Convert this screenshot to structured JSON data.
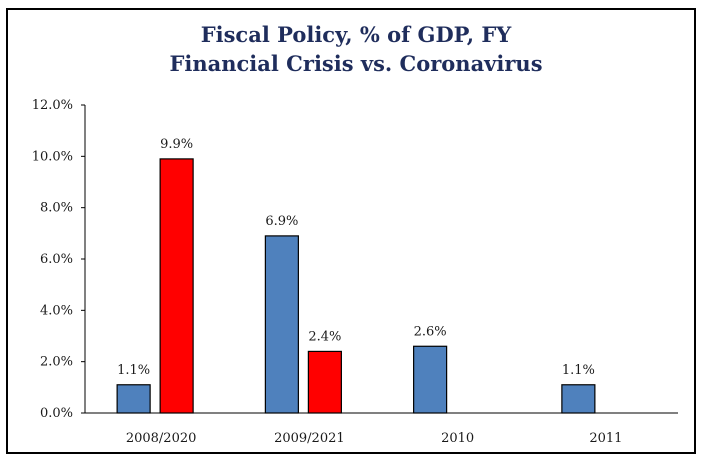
{
  "chart_data": {
    "type": "bar",
    "title": "Fiscal Policy, % of GDP, FY",
    "subtitle": "Financial Crisis vs. Coronavirus",
    "categories": [
      "2008/2020",
      "2009/2021",
      "2010",
      "2011"
    ],
    "series": [
      {
        "color": "#4f81bd",
        "values": [
          1.1,
          6.9,
          2.6,
          1.1
        ],
        "labels": [
          "1.1%",
          "6.9%",
          "2.6%",
          "1.1%"
        ]
      },
      {
        "color": "#ff0000",
        "values": [
          9.9,
          2.4,
          null,
          null
        ],
        "labels": [
          "9.9%",
          "2.4%",
          "",
          ""
        ]
      }
    ],
    "ylim": [
      0,
      12
    ],
    "yticks": [
      "0.0%",
      "2.0%",
      "4.0%",
      "6.0%",
      "8.0%",
      "10.0%",
      "12.0%"
    ],
    "ytick_values": [
      0,
      2,
      4,
      6,
      8,
      10,
      12
    ],
    "grid": false,
    "legend": "none"
  }
}
